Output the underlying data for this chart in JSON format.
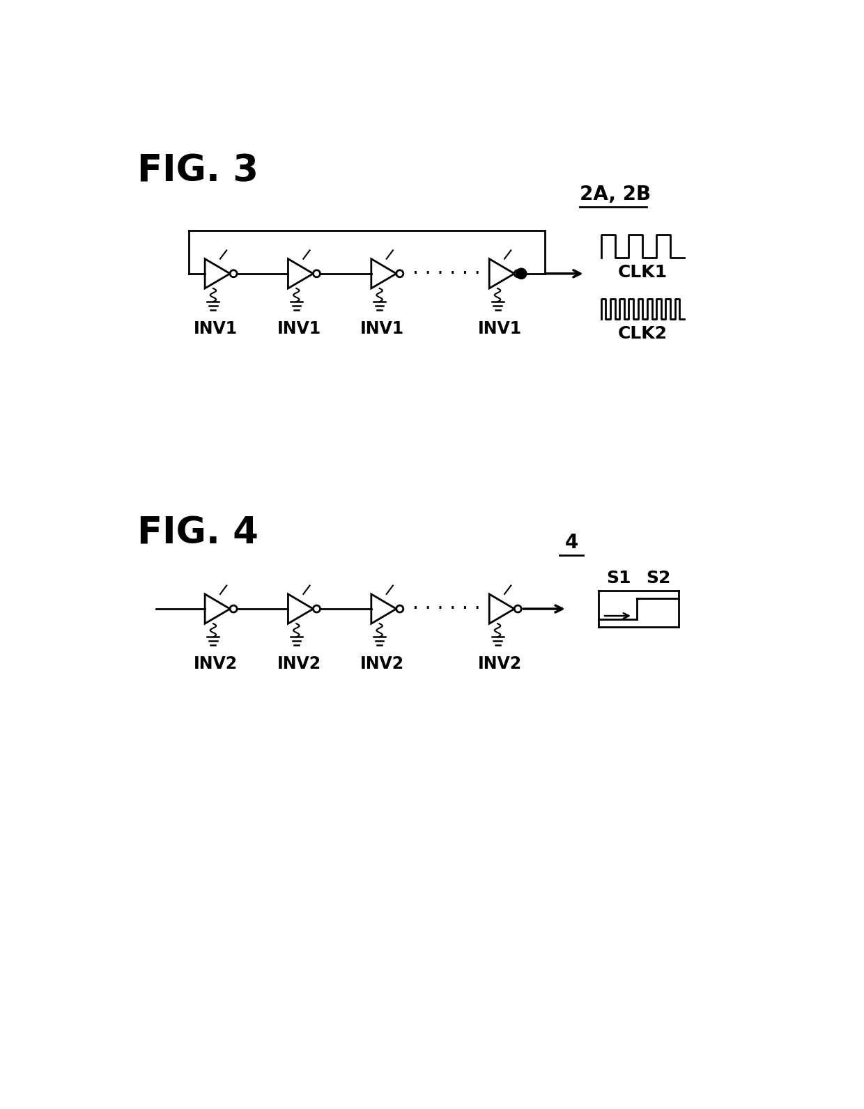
{
  "fig3_title": "FIG. 3",
  "fig4_title": "FIG. 4",
  "bg_color": "#ffffff",
  "line_color": "#000000",
  "fig3_label": "2A, 2B",
  "fig4_label": "4",
  "inv_labels_fig3": [
    "INV1",
    "INV1",
    "INV1",
    "INV1"
  ],
  "inv_labels_fig4": [
    "INV2",
    "INV2",
    "INV2",
    "INV2"
  ],
  "clk1_label": "CLK1",
  "clk2_label": "CLK2",
  "s1_label": "S1",
  "s2_label": "S2"
}
